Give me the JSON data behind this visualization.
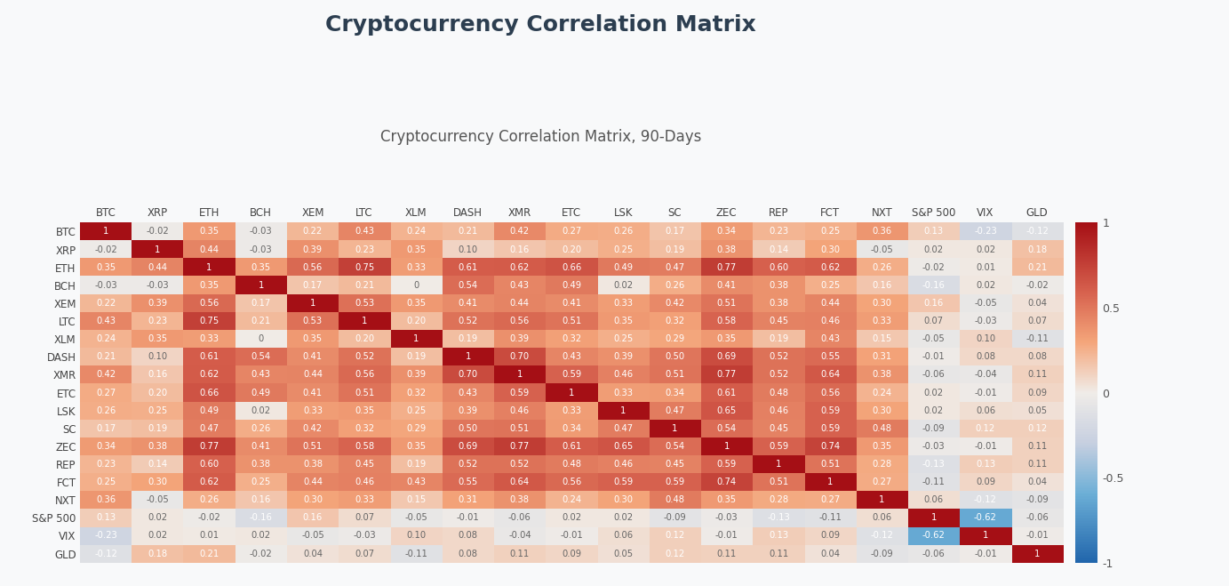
{
  "title": "Cryptocurrency Correlation Matrix",
  "subtitle": "Cryptocurrency Correlation Matrix, 90-Days",
  "labels": [
    "BTC",
    "XRP",
    "ETH",
    "BCH",
    "XEM",
    "LTC",
    "XLM",
    "DASH",
    "XMR",
    "ETC",
    "LSK",
    "SC",
    "ZEC",
    "REP",
    "FCT",
    "NXT",
    "S&P 500",
    "VIX",
    "GLD"
  ],
  "matrix": [
    [
      1,
      -0.02,
      0.35,
      -0.03,
      0.22,
      0.43,
      0.24,
      0.21,
      0.42,
      0.27,
      0.26,
      0.17,
      0.34,
      0.23,
      0.25,
      0.36,
      0.13,
      -0.23,
      -0.12
    ],
    [
      -0.02,
      1,
      0.44,
      -0.03,
      0.39,
      0.23,
      0.35,
      0.1,
      0.16,
      0.2,
      0.25,
      0.19,
      0.38,
      0.14,
      0.3,
      -0.05,
      0.02,
      0.02,
      0.18
    ],
    [
      0.35,
      0.44,
      1,
      0.35,
      0.56,
      0.75,
      0.33,
      0.61,
      0.62,
      0.66,
      0.49,
      0.47,
      0.77,
      0.6,
      0.62,
      0.26,
      -0.02,
      0.01,
      0.21
    ],
    [
      -0.03,
      -0.03,
      0.35,
      1,
      0.17,
      0.21,
      0,
      0.54,
      0.43,
      0.49,
      0.02,
      0.26,
      0.41,
      0.38,
      0.25,
      0.16,
      -0.16,
      0.02,
      -0.02
    ],
    [
      0.22,
      0.39,
      0.56,
      0.17,
      1,
      0.53,
      0.35,
      0.41,
      0.44,
      0.41,
      0.33,
      0.42,
      0.51,
      0.38,
      0.44,
      0.3,
      0.16,
      -0.05,
      0.04
    ],
    [
      0.43,
      0.23,
      0.75,
      0.21,
      0.53,
      1,
      0.2,
      0.52,
      0.56,
      0.51,
      0.35,
      0.32,
      0.58,
      0.45,
      0.46,
      0.33,
      0.07,
      -0.03,
      0.07
    ],
    [
      0.24,
      0.35,
      0.33,
      0,
      0.35,
      0.2,
      1,
      0.19,
      0.39,
      0.32,
      0.25,
      0.29,
      0.35,
      0.19,
      0.43,
      0.15,
      -0.05,
      0.1,
      -0.11
    ],
    [
      0.21,
      0.1,
      0.61,
      0.54,
      0.41,
      0.52,
      0.19,
      1,
      0.7,
      0.43,
      0.39,
      0.5,
      0.69,
      0.52,
      0.55,
      0.31,
      -0.01,
      0.08,
      0.08
    ],
    [
      0.42,
      0.16,
      0.62,
      0.43,
      0.44,
      0.56,
      0.39,
      0.7,
      1,
      0.59,
      0.46,
      0.51,
      0.77,
      0.52,
      0.64,
      0.38,
      -0.06,
      -0.04,
      0.11
    ],
    [
      0.27,
      0.2,
      0.66,
      0.49,
      0.41,
      0.51,
      0.32,
      0.43,
      0.59,
      1,
      0.33,
      0.34,
      0.61,
      0.48,
      0.56,
      0.24,
      0.02,
      -0.01,
      0.09
    ],
    [
      0.26,
      0.25,
      0.49,
      0.02,
      0.33,
      0.35,
      0.25,
      0.39,
      0.46,
      0.33,
      1,
      0.47,
      0.65,
      0.46,
      0.59,
      0.3,
      0.02,
      0.06,
      0.05
    ],
    [
      0.17,
      0.19,
      0.47,
      0.26,
      0.42,
      0.32,
      0.29,
      0.5,
      0.51,
      0.34,
      0.47,
      1,
      0.54,
      0.45,
      0.59,
      0.48,
      -0.09,
      0.12,
      0.12
    ],
    [
      0.34,
      0.38,
      0.77,
      0.41,
      0.51,
      0.58,
      0.35,
      0.69,
      0.77,
      0.61,
      0.65,
      0.54,
      1,
      0.59,
      0.74,
      0.35,
      -0.03,
      -0.01,
      0.11
    ],
    [
      0.23,
      0.14,
      0.6,
      0.38,
      0.38,
      0.45,
      0.19,
      0.52,
      0.52,
      0.48,
      0.46,
      0.45,
      0.59,
      1,
      0.51,
      0.28,
      -0.13,
      0.13,
      0.11
    ],
    [
      0.25,
      0.3,
      0.62,
      0.25,
      0.44,
      0.46,
      0.43,
      0.55,
      0.64,
      0.56,
      0.59,
      0.59,
      0.74,
      0.51,
      1,
      0.27,
      -0.11,
      0.09,
      0.04
    ],
    [
      0.36,
      -0.05,
      0.26,
      0.16,
      0.3,
      0.33,
      0.15,
      0.31,
      0.38,
      0.24,
      0.3,
      0.48,
      0.35,
      0.28,
      0.27,
      1,
      0.06,
      -0.12,
      -0.09
    ],
    [
      0.13,
      0.02,
      -0.02,
      -0.16,
      0.16,
      0.07,
      -0.05,
      -0.01,
      -0.06,
      0.02,
      0.02,
      -0.09,
      -0.03,
      -0.13,
      -0.11,
      0.06,
      1,
      -0.62,
      -0.06
    ],
    [
      -0.23,
      0.02,
      0.01,
      0.02,
      -0.05,
      -0.03,
      0.1,
      0.08,
      -0.04,
      -0.01,
      0.06,
      0.12,
      -0.01,
      0.13,
      0.09,
      -0.12,
      -0.62,
      1,
      -0.01
    ],
    [
      -0.12,
      0.18,
      0.21,
      -0.02,
      0.04,
      0.07,
      -0.11,
      0.08,
      0.11,
      0.09,
      0.05,
      0.12,
      0.11,
      0.11,
      0.04,
      -0.09,
      -0.06,
      -0.01,
      1
    ]
  ],
  "background_color": "#f8f9fa",
  "vmin": -1,
  "vmax": 1,
  "title_fontsize": 18,
  "subtitle_fontsize": 12,
  "tick_fontsize": 8.5,
  "cell_fontsize": 7.2
}
